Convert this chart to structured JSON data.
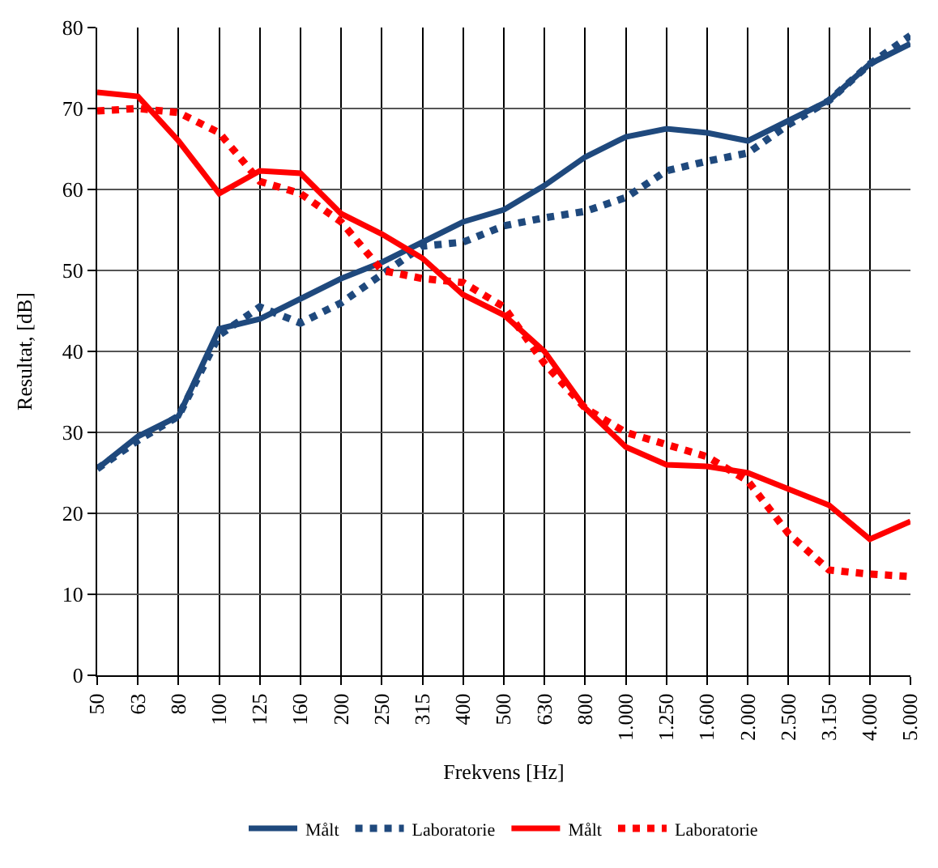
{
  "chart_data": {
    "type": "line",
    "xlabel": "Frekvens [Hz]",
    "ylabel": "Resultat, [dB]",
    "categories": [
      "50",
      "63",
      "80",
      "100",
      "125",
      "160",
      "200",
      "250",
      "315",
      "400",
      "500",
      "630",
      "800",
      "1.000",
      "1.250",
      "1.600",
      "2.000",
      "2.500",
      "3.150",
      "4.000",
      "5.000"
    ],
    "series": [
      {
        "name": "Målt",
        "color": "#1f497d",
        "line_style": "solid",
        "values": [
          25.5,
          29.5,
          32,
          42.8,
          44,
          46.5,
          49,
          51,
          53.5,
          56,
          57.5,
          60.5,
          64,
          66.5,
          67.5,
          67,
          66,
          68.5,
          71,
          75.5,
          78
        ]
      },
      {
        "name": "Laboratorie",
        "color": "#1f497d",
        "line_style": "dotted",
        "values": [
          25.5,
          29,
          32,
          42,
          45.5,
          43.5,
          46,
          49.5,
          53,
          53.5,
          55.5,
          56.5,
          57.3,
          59,
          62.3,
          63.5,
          64.5,
          68,
          71,
          75.5,
          79
        ]
      },
      {
        "name": "Målt",
        "color": "#ff0000",
        "line_style": "solid",
        "values": [
          72,
          71.5,
          66,
          59.5,
          62.3,
          62,
          57,
          54.5,
          51.5,
          47,
          44.5,
          40,
          33,
          28.2,
          26,
          25.8,
          25,
          23,
          21,
          16.8,
          19
        ]
      },
      {
        "name": "Laboratorie",
        "color": "#ff0000",
        "line_style": "dotted",
        "values": [
          69.7,
          70,
          69.5,
          67,
          61,
          59.5,
          56,
          50,
          49,
          48.5,
          45.5,
          38.5,
          33,
          30,
          28.5,
          27,
          24,
          17.5,
          13,
          12.5,
          12.2
        ]
      }
    ],
    "ylim": [
      0,
      80
    ],
    "yticks": [
      0,
      10,
      20,
      30,
      40,
      50,
      60,
      70,
      80
    ],
    "grid": true,
    "legend": "bottom",
    "marker": "none"
  }
}
